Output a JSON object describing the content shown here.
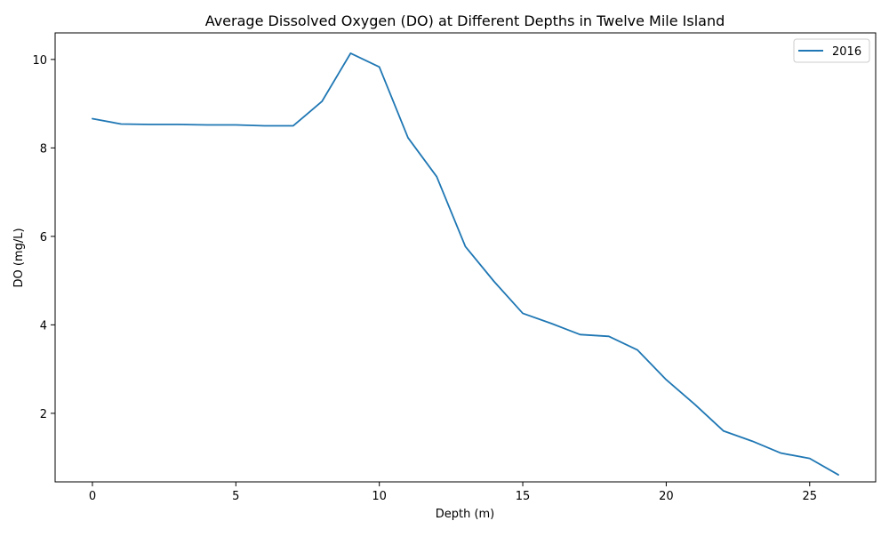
{
  "chart_data": {
    "type": "line",
    "title": "Average Dissolved Oxygen (DO) at Different Depths in Twelve Mile Island",
    "xlabel": "Depth (m)",
    "ylabel": "DO (mg/L)",
    "xlim": [
      -1.3,
      27.3
    ],
    "ylim": [
      0.45,
      10.6
    ],
    "xticks": [
      0,
      5,
      10,
      15,
      20,
      25
    ],
    "yticks": [
      2,
      4,
      6,
      8,
      10
    ],
    "grid": false,
    "legend_position": "top-right",
    "series": [
      {
        "name": "2016",
        "color": "#1f77b4",
        "x": [
          0,
          1,
          2,
          3,
          4,
          5,
          6,
          7,
          8,
          9,
          10,
          11,
          12,
          13,
          14,
          15,
          16,
          17,
          18,
          19,
          20,
          21,
          22,
          23,
          24,
          25,
          26
        ],
        "y": [
          8.66,
          8.54,
          8.53,
          8.53,
          8.52,
          8.52,
          8.5,
          8.5,
          9.05,
          10.14,
          9.83,
          8.23,
          7.35,
          5.77,
          4.98,
          4.26,
          4.03,
          3.78,
          3.74,
          3.43,
          2.76,
          2.2,
          1.6,
          1.37,
          1.1,
          0.98,
          0.61
        ]
      }
    ]
  }
}
